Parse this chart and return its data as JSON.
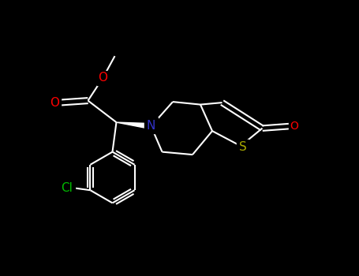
{
  "background_color": "#000000",
  "atom_colors": {
    "C": "#ffffff",
    "N": "#3333cc",
    "O": "#ff0000",
    "S": "#aaaa00",
    "Cl": "#00bb00"
  },
  "bond_color": "#ffffff",
  "figsize": [
    4.55,
    3.5
  ],
  "dpi": 100,
  "lw": 1.5,
  "fs": 11
}
